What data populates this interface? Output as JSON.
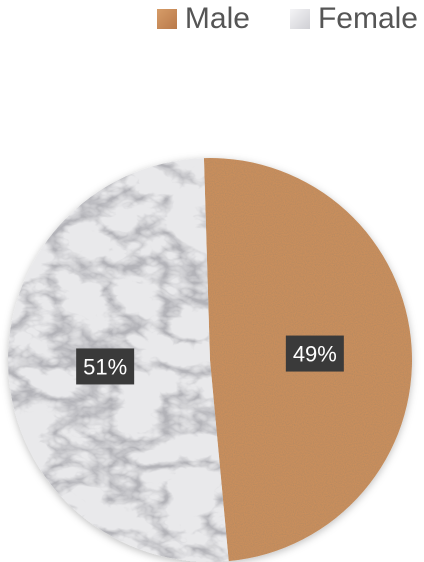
{
  "chart_data": {
    "type": "pie",
    "categories": [
      "Male",
      "Female"
    ],
    "values": [
      49,
      51
    ],
    "labels": [
      "49%",
      "51%"
    ],
    "legend_position": "top-right",
    "colors": {
      "Male": "#c98e5c",
      "Female": "#e9e9eb"
    }
  },
  "legend": {
    "items": [
      {
        "label": "Male",
        "icon": "cork-texture-swatch"
      },
      {
        "label": "Female",
        "icon": "marble-texture-swatch"
      }
    ]
  }
}
